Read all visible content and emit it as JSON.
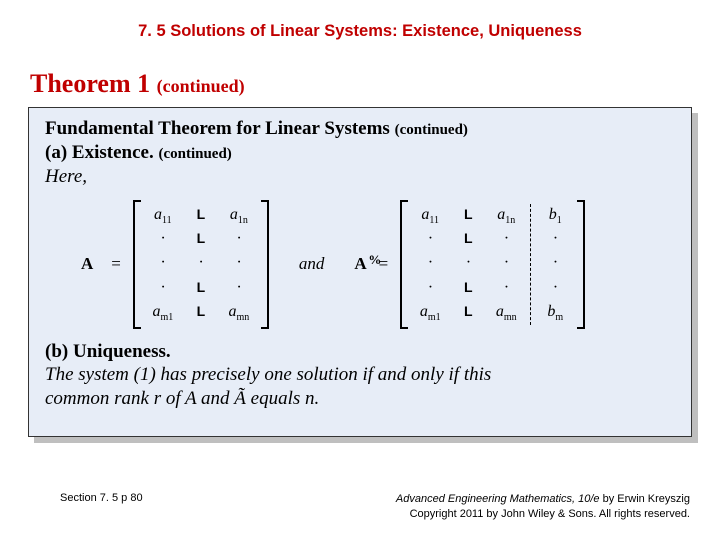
{
  "header": {
    "title": "7. 5 Solutions of Linear Systems: Existence, Uniqueness"
  },
  "theorem": {
    "label": "Theorem 1",
    "continued": "(continued)",
    "box": {
      "title": "Fundamental Theorem for Linear Systems",
      "title_continued": "(continued)",
      "part_a_label": "(a) Existence.",
      "part_a_continued": "(continued)",
      "here": "Here,",
      "matrix_A": {
        "label": "A",
        "equals": "=",
        "rows": [
          [
            "a11",
            "L",
            "a1n"
          ],
          [
            "·",
            "L",
            "·"
          ],
          [
            "·",
            "·",
            "·"
          ],
          [
            "·",
            "L",
            "·"
          ],
          [
            "am1",
            "L",
            "amn"
          ]
        ]
      },
      "and": "and",
      "matrix_Atilde": {
        "label": "A",
        "tilde_mark": "%",
        "equals": "=",
        "rows_left": [
          [
            "a11",
            "L",
            "a1n"
          ],
          [
            "·",
            "L",
            "·"
          ],
          [
            "·",
            "·",
            "·"
          ],
          [
            "·",
            "L",
            "·"
          ],
          [
            "am1",
            "L",
            "amn"
          ]
        ],
        "rows_right": [
          "b1",
          "·",
          "·",
          "·",
          "bm"
        ]
      },
      "part_b_label": "(b) Uniqueness.",
      "part_b_text1": "The system (1) has precisely one solution if and only if this",
      "part_b_text2": "common rank r of A and Ã equals n."
    }
  },
  "footer": {
    "left": "Section 7. 5  p 80",
    "right1_ital": "Advanced Engineering Mathematics, 10/e",
    "right1_rest": " by Erwin Kreyszig",
    "right2": "Copyright 2011 by John Wiley & Sons. All rights reserved."
  },
  "colors": {
    "accent": "#c00000",
    "box_bg": "#e7edf7",
    "shadow": "#bfbfbf"
  }
}
